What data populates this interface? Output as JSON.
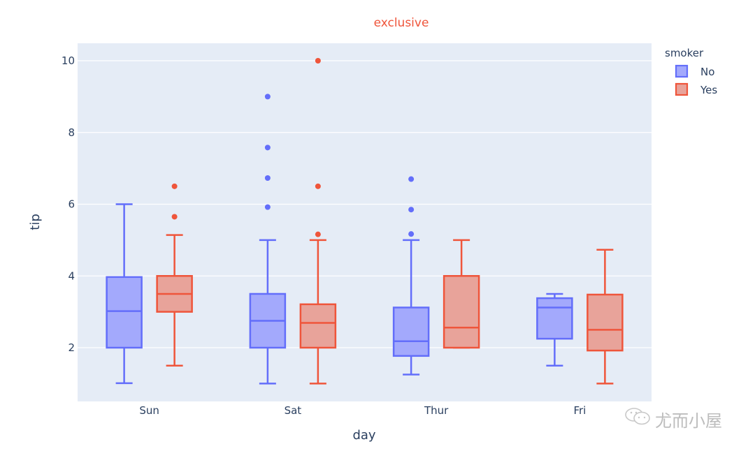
{
  "chart_data": {
    "type": "box",
    "title": "exclusive",
    "title_color": "#ef553b",
    "xlabel": "day",
    "ylabel": "tip",
    "categories": [
      "Sun",
      "Sat",
      "Thur",
      "Fri"
    ],
    "yticks": [
      2,
      4,
      6,
      8,
      10
    ],
    "ylim": [
      0.5,
      10.5
    ],
    "grid": true,
    "plot_bgcolor": "#e5ecf6",
    "legend": {
      "title": "smoker",
      "placement": "top-right"
    },
    "series": [
      {
        "name": "No",
        "line_color": "#636efa",
        "fill_color": "#a3a9fc",
        "boxes": [
          {
            "category": "Sun",
            "lower": 1.01,
            "q1": 2.0,
            "median": 3.02,
            "q3": 3.97,
            "upper": 6.0,
            "outliers": []
          },
          {
            "category": "Sat",
            "lower": 1.0,
            "q1": 2.0,
            "median": 2.75,
            "q3": 3.5,
            "upper": 5.0,
            "outliers": [
              5.92,
              6.73,
              7.58,
              9.0
            ]
          },
          {
            "category": "Thur",
            "lower": 1.25,
            "q1": 1.77,
            "median": 2.18,
            "q3": 3.12,
            "upper": 5.0,
            "outliers": [
              5.17,
              5.85,
              6.7
            ]
          },
          {
            "category": "Fri",
            "lower": 1.5,
            "q1": 2.25,
            "median": 3.12,
            "q3": 3.38,
            "upper": 3.5,
            "outliers": []
          }
        ]
      },
      {
        "name": "Yes",
        "line_color": "#ef553b",
        "fill_color": "#e8a39a",
        "boxes": [
          {
            "category": "Sun",
            "lower": 1.5,
            "q1": 3.0,
            "median": 3.5,
            "q3": 4.0,
            "upper": 5.14,
            "outliers": [
              5.65,
              6.5
            ]
          },
          {
            "category": "Sat",
            "lower": 1.0,
            "q1": 2.0,
            "median": 2.69,
            "q3": 3.21,
            "upper": 5.0,
            "outliers": [
              5.16,
              6.5,
              10.0
            ]
          },
          {
            "category": "Thur",
            "lower": 2.0,
            "q1": 2.0,
            "median": 2.56,
            "q3": 4.0,
            "upper": 5.0,
            "outliers": []
          },
          {
            "category": "Fri",
            "lower": 1.0,
            "q1": 1.92,
            "median": 2.5,
            "q3": 3.48,
            "upper": 4.73,
            "outliers": []
          }
        ]
      }
    ]
  },
  "watermark": {
    "text": "尤而小屋",
    "icon": "wechat-icon"
  }
}
